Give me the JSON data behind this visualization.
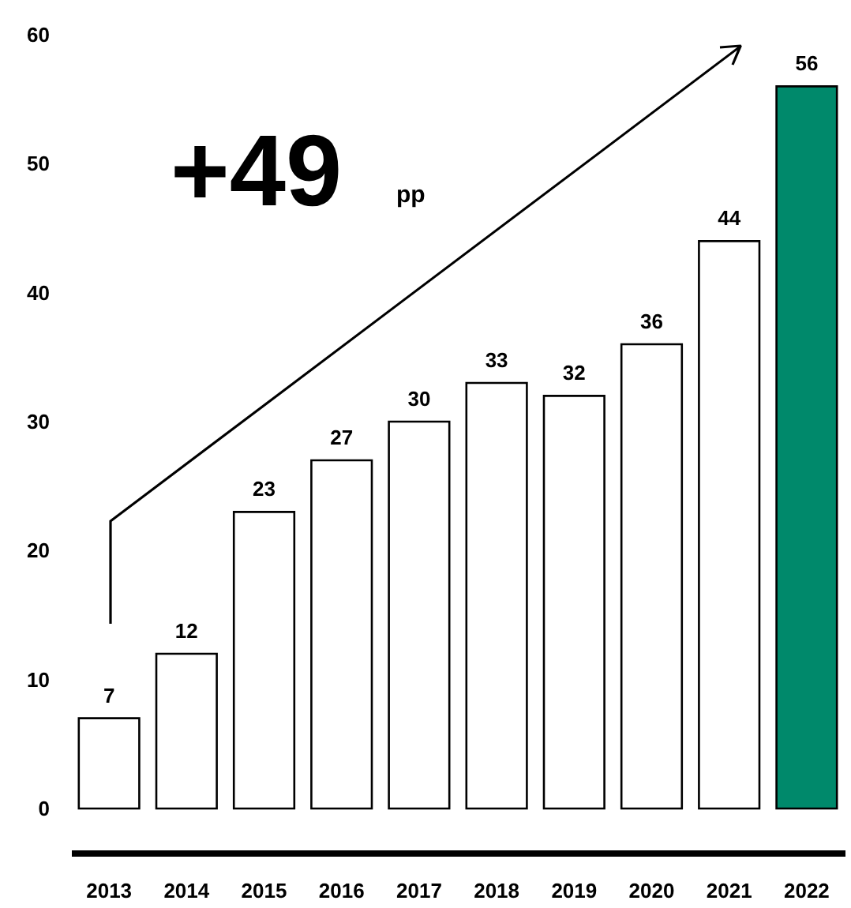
{
  "chart_data": {
    "type": "bar",
    "categories": [
      "2013",
      "2014",
      "2015",
      "2016",
      "2017",
      "2018",
      "2019",
      "2020",
      "2021",
      "2022"
    ],
    "values": [
      7,
      12,
      23,
      27,
      30,
      33,
      32,
      36,
      44,
      56
    ],
    "colors": [
      "#ffffff",
      "#ffffff",
      "#ffffff",
      "#ffffff",
      "#ffffff",
      "#ffffff",
      "#ffffff",
      "#ffffff",
      "#ffffff",
      "#00896b"
    ],
    "ylim": [
      0,
      60
    ],
    "yticks": [
      0,
      10,
      20,
      30,
      40,
      50,
      60
    ],
    "data_labels": true,
    "annotations": [
      "+49",
      "pp"
    ]
  }
}
